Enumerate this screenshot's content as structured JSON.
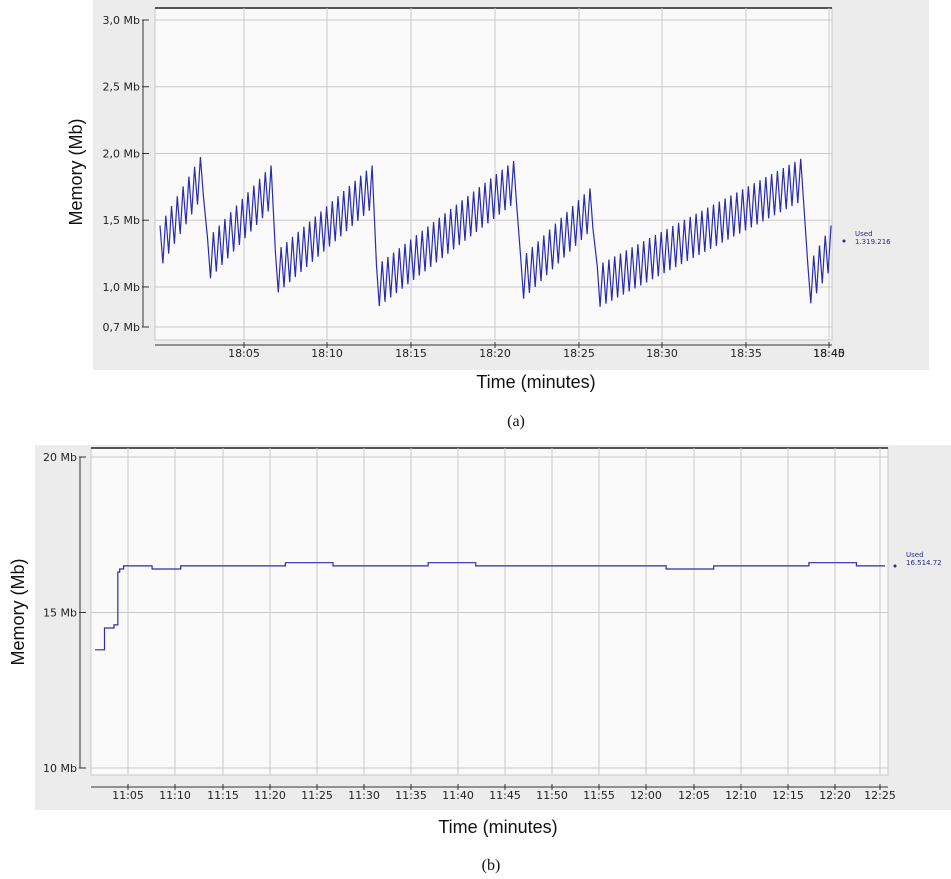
{
  "chart_data": [
    {
      "type": "line",
      "caption": "(a)",
      "xlabel": "Time (minutes)",
      "ylabel": "Memory (Mb)",
      "x_ticks": [
        "18:05",
        "18:10",
        "18:15",
        "18:20",
        "18:25",
        "18:30",
        "18:35",
        "18:40",
        "18:45"
      ],
      "y_ticks": [
        "3,0 Mb",
        "2,5 Mb",
        "2,0 Mb",
        "1,5 Mb",
        "1,0 Mb",
        "0,7 Mb"
      ],
      "y_tick_values": [
        3.0,
        2.5,
        2.0,
        1.5,
        1.0,
        0.7
      ],
      "ylim": [
        0.7,
        3.0
      ],
      "grid": true,
      "legend": {
        "label": "Used",
        "value": "1.319.216"
      },
      "series": [
        {
          "color": "#2b2bb0",
          "x": [
            0.0,
            3.0,
            3.3,
            7.7,
            8.0,
            14.7,
            15.0,
            24.7,
            25.0,
            30.0,
            30.3,
            44.4,
            44.9,
            46.5
          ],
          "y": [
            1.3,
            1.85,
            1.2,
            1.75,
            1.1,
            1.75,
            1.0,
            1.8,
            1.05,
            1.6,
            1.0,
            1.8,
            1.0,
            1.3
          ],
          "oscillation": 0.32
        }
      ]
    },
    {
      "type": "line",
      "caption": "(b)",
      "xlabel": "Time (minutes)",
      "ylabel": "Memory (Mb)",
      "x_ticks": [
        "11:05",
        "11:10",
        "11:15",
        "11:20",
        "11:25",
        "11:30",
        "11:35",
        "11:40",
        "11:45",
        "11:50",
        "11:55",
        "12:00",
        "12:05",
        "12:10",
        "12:15",
        "12:20",
        "12:25"
      ],
      "y_ticks": [
        "20 Mb",
        "15 Mb",
        "10 Mb"
      ],
      "y_tick_values": [
        20,
        15,
        10
      ],
      "ylim": [
        10,
        20
      ],
      "grid": true,
      "legend": {
        "label": "Used",
        "value": "16.514.72"
      },
      "series": [
        {
          "color": "#2b2bb0",
          "x": [
            0.0,
            1.0,
            2.0,
            2.4,
            2.6,
            3.0,
            4.0,
            6.0,
            9.0,
            14.0,
            20.0,
            25.0,
            30.0,
            35.0,
            40.0,
            45.0,
            50.0,
            55.0,
            60.0,
            65.0,
            70.0,
            75.0,
            80.0,
            83.0
          ],
          "y": [
            13.8,
            14.5,
            14.6,
            16.3,
            16.4,
            16.5,
            16.5,
            16.4,
            16.5,
            16.5,
            16.6,
            16.5,
            16.5,
            16.6,
            16.5,
            16.5,
            16.5,
            16.5,
            16.4,
            16.5,
            16.5,
            16.6,
            16.5,
            16.5
          ]
        }
      ]
    }
  ]
}
